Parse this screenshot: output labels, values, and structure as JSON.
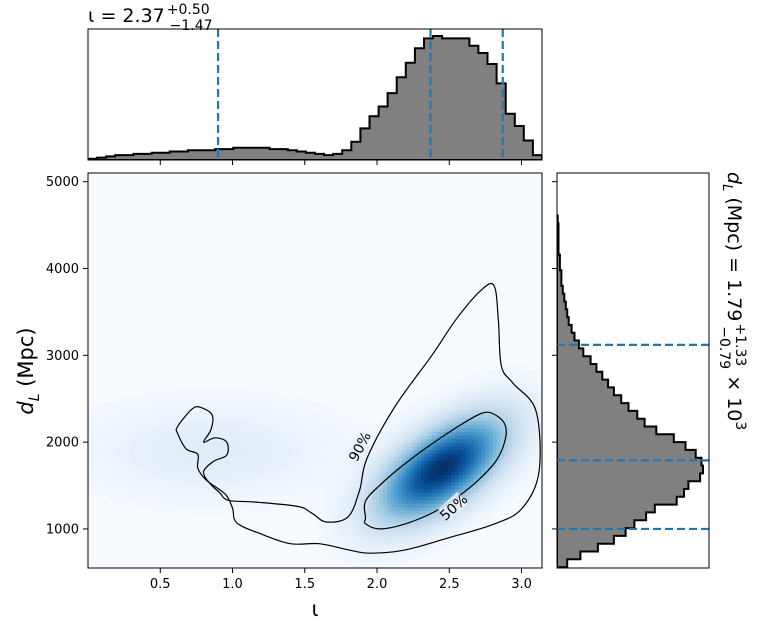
{
  "chart_data": {
    "type": "corner-plot",
    "parameters": [
      "ι",
      "d_L (Mpc)"
    ],
    "colors": {
      "hist_fill": "#808080",
      "hist_edge": "#000000",
      "quantile_line": "#1f77b4",
      "density_cmap": "Blues",
      "contour": "#000000"
    },
    "marginal_iota": {
      "title": {
        "symbol": "ι",
        "eq": " = 2.37",
        "plus": "+0.50",
        "minus": "−1.47"
      },
      "median": 2.37,
      "plus": 0.5,
      "minus": 1.47,
      "quantiles": [
        0.9,
        2.37,
        2.87
      ],
      "xlim": [
        0.0,
        3.14159
      ],
      "bin_edges": [
        0.0,
        0.0628,
        0.1257,
        0.1885,
        0.2513,
        0.3142,
        0.377,
        0.4398,
        0.5027,
        0.5655,
        0.6283,
        0.6912,
        0.754,
        0.8168,
        0.8796,
        0.9425,
        1.0053,
        1.0681,
        1.131,
        1.1938,
        1.2566,
        1.3195,
        1.3823,
        1.4451,
        1.508,
        1.5708,
        1.6336,
        1.6965,
        1.7593,
        1.8221,
        1.885,
        1.9478,
        2.0106,
        2.0735,
        2.1363,
        2.1991,
        2.2619,
        2.3248,
        2.3876,
        2.4504,
        2.5133,
        2.5761,
        2.6389,
        2.7018,
        2.7646,
        2.8274,
        2.8903,
        2.9531,
        3.0159,
        3.0788,
        3.1416
      ],
      "counts": [
        1,
        2,
        3,
        4,
        4,
        5,
        5,
        6,
        6,
        7,
        7,
        8,
        8,
        8,
        9,
        9,
        10,
        10,
        10,
        10,
        9,
        9,
        8,
        7,
        6,
        5,
        4,
        5,
        8,
        15,
        26,
        36,
        44,
        55,
        68,
        80,
        92,
        100,
        102,
        100,
        100,
        100,
        94,
        88,
        79,
        63,
        38,
        28,
        16,
        4
      ]
    },
    "marginal_dL": {
      "label": {
        "symbol": "d",
        "sub": "L",
        "unit": " (Mpc) = 1.79",
        "plus": "+1.33",
        "minus": "−0.79",
        "times": " × 10",
        "exp": "3"
      },
      "median": 1790,
      "plus": 1330,
      "minus": 790,
      "quantiles": [
        1000,
        1790,
        3120
      ],
      "ylim": [
        550,
        5100
      ],
      "bin_edges": [
        560,
        650,
        740,
        830,
        920,
        1010,
        1100,
        1190,
        1280,
        1370,
        1460,
        1550,
        1640,
        1730,
        1820,
        1910,
        2000,
        2090,
        2180,
        2270,
        2360,
        2450,
        2540,
        2630,
        2720,
        2810,
        2900,
        2990,
        3080,
        3170,
        3260,
        3350,
        3440,
        3530,
        3620,
        3710,
        3800,
        3890,
        3980,
        4070,
        4160,
        4250,
        4340,
        4430,
        4520,
        4610
      ],
      "counts": [
        7,
        16,
        28,
        39,
        47,
        53,
        61,
        67,
        82,
        87,
        90,
        98,
        100,
        99,
        95,
        88,
        80,
        68,
        60,
        55,
        49,
        44,
        39,
        35,
        31,
        27,
        23,
        18,
        15,
        12,
        10,
        8,
        7,
        6,
        5,
        4,
        3,
        3,
        2,
        2,
        1,
        1,
        1,
        1,
        0.5
      ]
    },
    "joint": {
      "xlim": [
        0.0,
        3.14159
      ],
      "ylim": [
        550,
        5100
      ],
      "xticks": [
        0.5,
        1.0,
        1.5,
        2.0,
        2.5,
        3.0
      ],
      "xtick_labels": [
        "0.5",
        "1.0",
        "1.5",
        "2.0",
        "2.5",
        "3.0"
      ],
      "yticks": [
        1000,
        2000,
        3000,
        4000,
        5000
      ],
      "ytick_labels": [
        "1000",
        "2000",
        "3000",
        "4000",
        "5000"
      ],
      "xlabel": "ι",
      "ylabel": {
        "symbol": "d",
        "sub": "L",
        "unit": " (Mpc)"
      },
      "density_modes": [
        {
          "x": 2.45,
          "y": 1700,
          "sx": 0.28,
          "sy": 380,
          "rho": 0.6,
          "w": 1.0
        },
        {
          "x": 0.85,
          "y": 1900,
          "sx": 0.55,
          "sy": 350,
          "rho": 0.0,
          "w": 0.08
        }
      ],
      "contour_50": [
        [
          1.92,
          1130
        ],
        [
          1.92,
          1320
        ],
        [
          2.03,
          1520
        ],
        [
          2.2,
          1760
        ],
        [
          2.38,
          1980
        ],
        [
          2.58,
          2200
        ],
        [
          2.72,
          2330
        ],
        [
          2.8,
          2330
        ],
        [
          2.88,
          2220
        ],
        [
          2.89,
          2050
        ],
        [
          2.83,
          1800
        ],
        [
          2.7,
          1560
        ],
        [
          2.55,
          1360
        ],
        [
          2.4,
          1200
        ],
        [
          2.2,
          1060
        ],
        [
          2.02,
          1000
        ],
        [
          1.92,
          1060
        ]
      ],
      "contour_90": [
        [
          0.62,
          2180
        ],
        [
          0.72,
          2380
        ],
        [
          0.78,
          2400
        ],
        [
          0.86,
          2310
        ],
        [
          0.85,
          2140
        ],
        [
          0.8,
          2000
        ],
        [
          0.88,
          2050
        ],
        [
          0.96,
          2000
        ],
        [
          0.96,
          1850
        ],
        [
          0.87,
          1780
        ],
        [
          0.8,
          1660
        ],
        [
          0.84,
          1530
        ],
        [
          0.91,
          1420
        ],
        [
          0.97,
          1330
        ],
        [
          1.15,
          1310
        ],
        [
          1.45,
          1260
        ],
        [
          1.55,
          1180
        ],
        [
          1.65,
          1080
        ],
        [
          1.8,
          1140
        ],
        [
          1.88,
          1450
        ],
        [
          1.93,
          1810
        ],
        [
          2.12,
          2400
        ],
        [
          2.38,
          3000
        ],
        [
          2.55,
          3420
        ],
        [
          2.72,
          3750
        ],
        [
          2.81,
          3800
        ],
        [
          2.84,
          3400
        ],
        [
          2.86,
          2880
        ],
        [
          2.94,
          2680
        ],
        [
          3.1,
          2360
        ],
        [
          3.12,
          1650
        ],
        [
          3.0,
          1230
        ],
        [
          2.8,
          1050
        ],
        [
          2.5,
          900
        ],
        [
          2.2,
          760
        ],
        [
          1.95,
          720
        ],
        [
          1.8,
          760
        ],
        [
          1.6,
          830
        ],
        [
          1.4,
          830
        ],
        [
          1.2,
          940
        ],
        [
          1.03,
          1070
        ],
        [
          1.0,
          1240
        ],
        [
          0.95,
          1400
        ],
        [
          0.82,
          1560
        ],
        [
          0.76,
          1700
        ],
        [
          0.76,
          1860
        ],
        [
          0.68,
          1920
        ],
        [
          0.62,
          2100
        ]
      ],
      "contour_labels": [
        {
          "text": "50%",
          "x": 2.53,
          "y": 1250,
          "angle": -42
        },
        {
          "text": "90%",
          "x": 1.88,
          "y": 1950,
          "angle": -62
        }
      ]
    }
  }
}
